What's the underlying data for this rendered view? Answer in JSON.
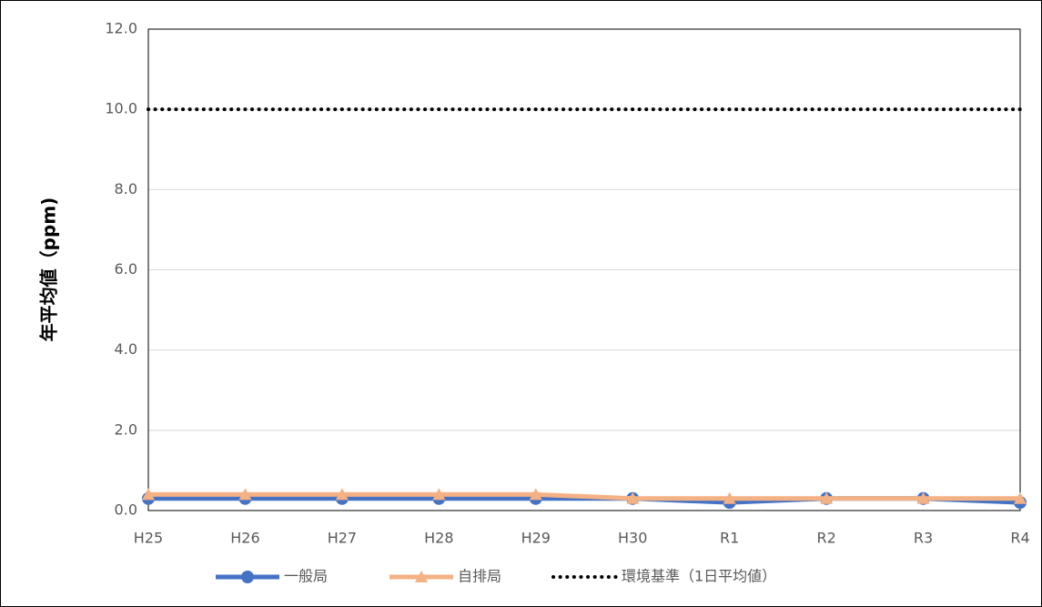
{
  "chart_data": {
    "type": "line",
    "y_label": "年平均値（ppm)",
    "categories": [
      "H25",
      "H26",
      "H27",
      "H28",
      "H29",
      "H30",
      "R1",
      "R2",
      "R3",
      "R4"
    ],
    "series": [
      {
        "name": "一般局",
        "color": "#4472c4",
        "marker": "circle",
        "line_style": "solid",
        "values": [
          0.3,
          0.3,
          0.3,
          0.3,
          0.3,
          0.3,
          0.2,
          0.3,
          0.3,
          0.2
        ]
      },
      {
        "name": "自排局",
        "color": "#f4b183",
        "marker": "triangle",
        "line_style": "solid",
        "values": [
          0.4,
          0.4,
          0.4,
          0.4,
          0.4,
          0.3,
          0.3,
          0.3,
          0.3,
          0.3
        ]
      },
      {
        "name": "環境基準（1日平均値）",
        "color": "#000000",
        "marker": null,
        "line_style": "dotted",
        "values": [
          10,
          10,
          10,
          10,
          10,
          10,
          10,
          10,
          10,
          10
        ]
      }
    ],
    "ylim": [
      0,
      12
    ],
    "yticks": [
      {
        "value": 0,
        "label": "0.0"
      },
      {
        "value": 2,
        "label": "2.0"
      },
      {
        "value": 4,
        "label": "4.0"
      },
      {
        "value": 6,
        "label": "6.0"
      },
      {
        "value": 8,
        "label": "8.0"
      },
      {
        "value": 10,
        "label": "10.0"
      },
      {
        "value": 12,
        "label": "12.0"
      }
    ],
    "grid": true,
    "legend": "bottom"
  }
}
